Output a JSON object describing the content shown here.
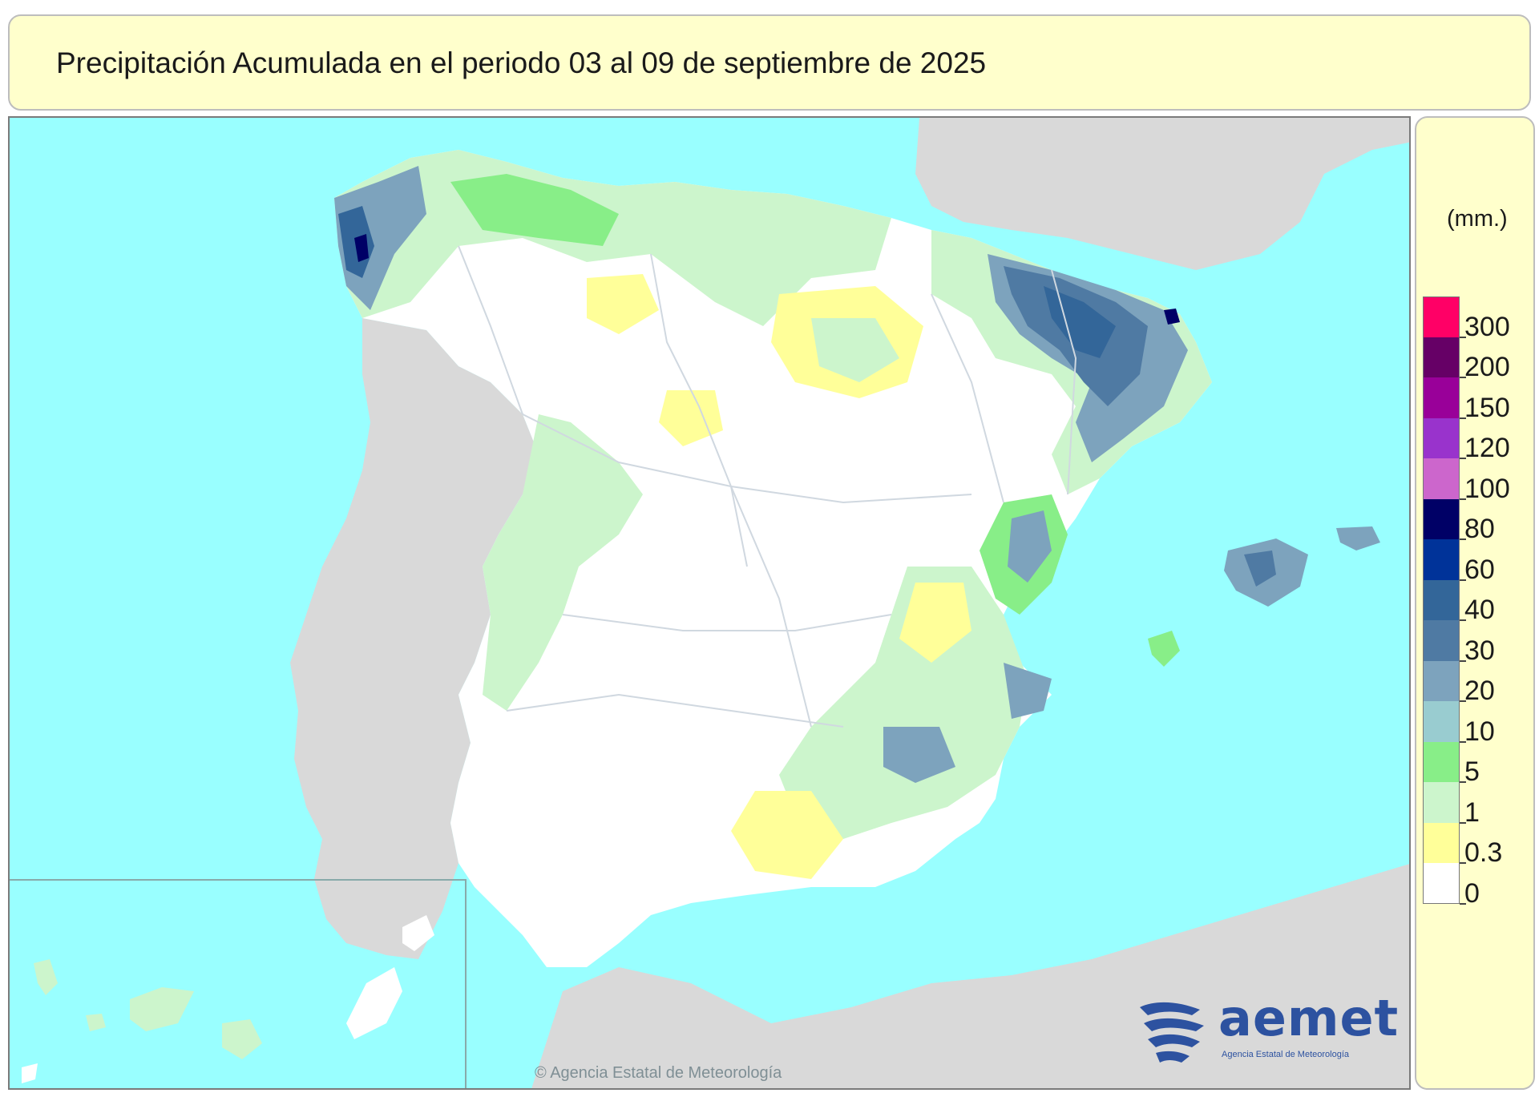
{
  "title": "Precipitación Acumulada en el periodo 03 al 09 de septiembre de 2025",
  "legend": {
    "unit": "(mm.)",
    "classes": [
      {
        "label": "300",
        "color": "#ff0066"
      },
      {
        "label": "200",
        "color": "#660066"
      },
      {
        "label": "150",
        "color": "#990099"
      },
      {
        "label": "120",
        "color": "#9933cc"
      },
      {
        "label": "100",
        "color": "#cc66cc"
      },
      {
        "label": "80",
        "color": "#000066"
      },
      {
        "label": "60",
        "color": "#003399"
      },
      {
        "label": "40",
        "color": "#336699"
      },
      {
        "label": "30",
        "color": "#4f7aa3"
      },
      {
        "label": "20",
        "color": "#7da3bd"
      },
      {
        "label": "10",
        "color": "#99ccd0"
      },
      {
        "label": "5",
        "color": "#88ee88"
      },
      {
        "label": "1",
        "color": "#ccf5cc"
      },
      {
        "label": "0.3",
        "color": "#ffff99"
      },
      {
        "label": "0",
        "color": "#ffffff"
      }
    ]
  },
  "colors": {
    "sea": "#99ffff",
    "other_land": "#d9d9d9",
    "borders": "#d0d8e0"
  },
  "logo": {
    "text": "aemet",
    "subtitle": "Agencia Estatal de Meteorología"
  },
  "copyright": "© Agencia Estatal de Meteorología"
}
